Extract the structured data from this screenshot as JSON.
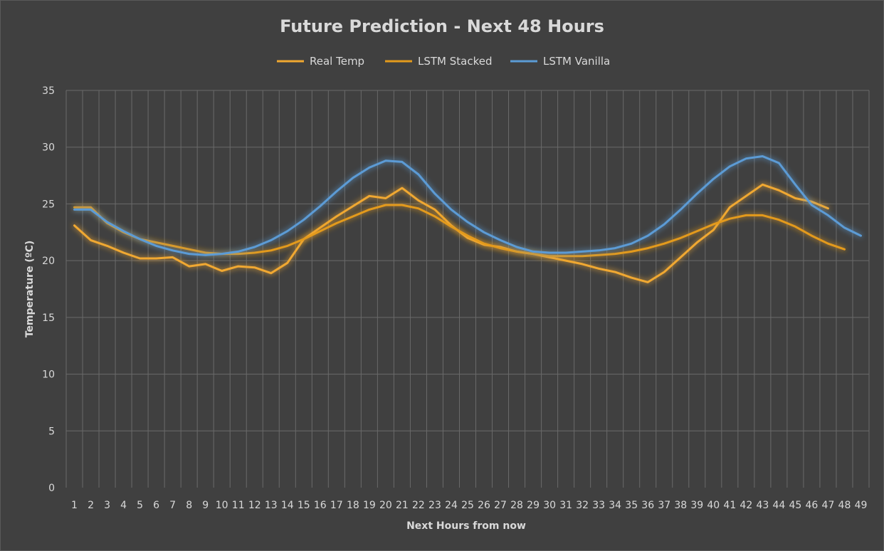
{
  "chart_data": {
    "type": "line",
    "title": "Future Prediction - Next 48 Hours",
    "xlabel": "Next Hours from now",
    "ylabel": "Temperature (ºC)",
    "ylim": [
      0,
      35
    ],
    "yticks": [
      0,
      5,
      10,
      15,
      20,
      25,
      30,
      35
    ],
    "x": [
      1,
      2,
      3,
      4,
      5,
      6,
      7,
      8,
      9,
      10,
      11,
      12,
      13,
      14,
      15,
      16,
      17,
      18,
      19,
      20,
      21,
      22,
      23,
      24,
      25,
      26,
      27,
      28,
      29,
      30,
      31,
      32,
      33,
      34,
      35,
      36,
      37,
      38,
      39,
      40,
      41,
      42,
      43,
      44,
      45,
      46,
      47,
      48,
      49
    ],
    "grid": "vertical and horizontal",
    "legend_position": "top",
    "series": [
      {
        "name": "Real Temp",
        "color": "#f0a830",
        "values": [
          23.1,
          21.8,
          21.3,
          20.7,
          20.2,
          20.2,
          20.3,
          19.5,
          19.7,
          19.1,
          19.5,
          19.4,
          18.9,
          19.8,
          21.9,
          22.9,
          23.9,
          24.8,
          25.7,
          25.5,
          26.4,
          25.3,
          24.5,
          23.1,
          22.0,
          21.4,
          21.2,
          20.8,
          20.6,
          20.3,
          20.0,
          19.7,
          19.3,
          19.0,
          18.5,
          18.1,
          19.0,
          20.3,
          21.6,
          22.7,
          24.7,
          25.7,
          26.7,
          26.2,
          25.5,
          25.2,
          24.6,
          null,
          null
        ]
      },
      {
        "name": "LSTM Stacked",
        "color": "#e39a1c",
        "values": [
          24.7,
          24.7,
          23.3,
          22.5,
          21.9,
          21.6,
          21.3,
          21.0,
          20.7,
          20.6,
          20.6,
          20.7,
          20.9,
          21.3,
          21.9,
          22.6,
          23.3,
          23.9,
          24.5,
          24.9,
          24.9,
          24.6,
          23.9,
          23.0,
          22.2,
          21.5,
          21.1,
          20.8,
          20.6,
          20.4,
          20.4,
          20.4,
          20.5,
          20.6,
          20.8,
          21.1,
          21.5,
          22.0,
          22.6,
          23.2,
          23.7,
          24.0,
          24.0,
          23.6,
          23.0,
          22.2,
          21.5,
          21.0,
          null
        ]
      },
      {
        "name": "LSTM Vanilla",
        "color": "#5b9bd5",
        "values": [
          24.5,
          24.5,
          23.4,
          22.6,
          21.9,
          21.3,
          20.9,
          20.6,
          20.5,
          20.6,
          20.8,
          21.2,
          21.8,
          22.6,
          23.6,
          24.8,
          26.1,
          27.3,
          28.2,
          28.8,
          28.7,
          27.6,
          25.9,
          24.5,
          23.4,
          22.5,
          21.8,
          21.2,
          20.8,
          20.7,
          20.7,
          20.8,
          20.9,
          21.1,
          21.5,
          22.2,
          23.2,
          24.5,
          25.9,
          27.2,
          28.3,
          29.0,
          29.2,
          28.6,
          26.7,
          24.9,
          24.0,
          22.9,
          22.2
        ]
      }
    ]
  }
}
